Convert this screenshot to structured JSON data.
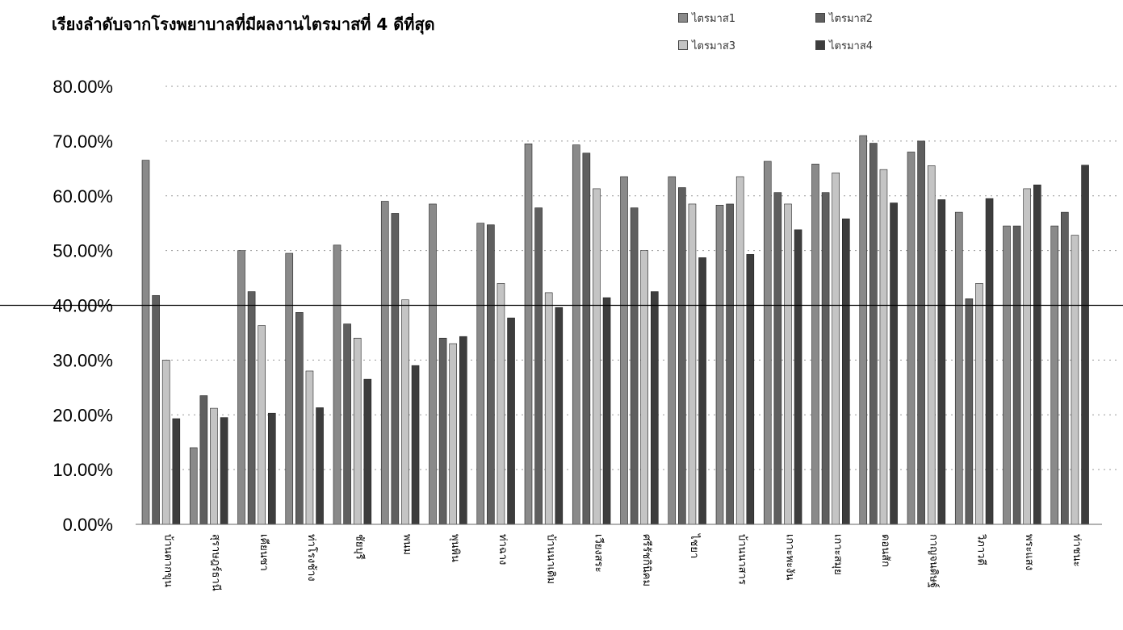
{
  "chart_data": {
    "type": "bar",
    "title": "เรียงลำดับจากโรงพยาบาลที่มีผลงานไตรมาสที่ 4 ดีที่สุด",
    "ylim": [
      0,
      80
    ],
    "yticks": [
      "0.00%",
      "10.00%",
      "20.00%",
      "30.00%",
      "40.00%",
      "50.00%",
      "60.00%",
      "70.00%",
      "80.00%"
    ],
    "reference_line": 40,
    "grid": "dotted horizontal",
    "legend_position": "top-right",
    "categories": [
      "บ้านตากขุน",
      "สุราษฎร์ธานี",
      "เคียนซา",
      "ท่าโรงช้าง",
      "ชัยบุรี",
      "พนม",
      "พุนพิน",
      "ท่าฉาง",
      "บ้านนาเดิม",
      "เวียงสระ",
      "ศรีรัชกินิคม",
      "ไชยา",
      "บ้านนาสาร",
      "เกาะพะงัน",
      "เกาะสมุย",
      "ดอนสัก",
      "กาญจนดิษฐ์",
      "วิภาวดี",
      "พระแสง",
      "ท่าชนะ"
    ],
    "series": [
      {
        "name": "ไตรมาส1",
        "color": "#8a8a8a",
        "values": [
          66.5,
          14.0,
          50.0,
          49.5,
          51.0,
          59.0,
          58.5,
          55.0,
          69.5,
          69.3,
          63.5,
          63.5,
          58.3,
          66.3,
          65.8,
          71.0,
          68.0,
          57.0,
          54.5,
          54.5
        ]
      },
      {
        "name": "ไตรมาส2",
        "color": "#5f5f5f",
        "values": [
          41.8,
          23.5,
          42.5,
          38.7,
          36.6,
          56.8,
          34.0,
          54.7,
          57.8,
          67.8,
          57.8,
          61.5,
          58.5,
          60.6,
          60.6,
          69.6,
          70.0,
          41.2,
          54.5,
          57.0
        ]
      },
      {
        "name": "ไตรมาส3",
        "color": "#c4c4c4",
        "values": [
          30.0,
          21.2,
          36.3,
          28.0,
          34.0,
          41.0,
          33.0,
          44.0,
          42.3,
          61.3,
          50.0,
          58.5,
          63.5,
          58.5,
          64.2,
          64.8,
          65.5,
          44.0,
          61.3,
          52.8
        ]
      },
      {
        "name": "ไตรมาส4",
        "color": "#3d3d3d",
        "values": [
          19.3,
          19.5,
          20.3,
          21.3,
          26.5,
          29.0,
          34.3,
          37.7,
          39.6,
          41.4,
          42.5,
          48.7,
          49.3,
          53.8,
          55.8,
          58.7,
          59.3,
          59.5,
          62.0,
          65.6
        ]
      }
    ]
  }
}
